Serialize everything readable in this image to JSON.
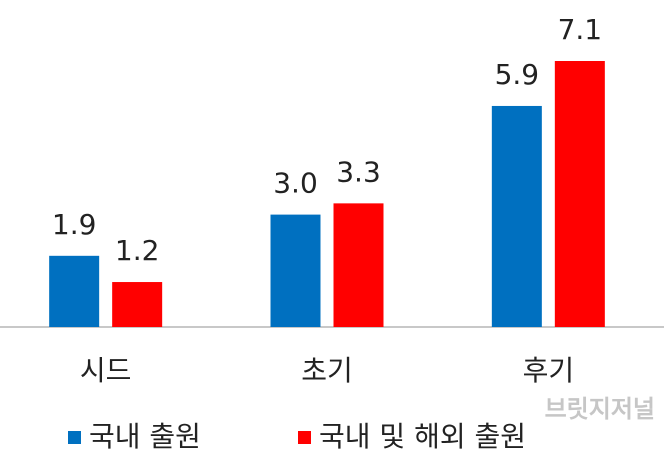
{
  "chart_data": {
    "type": "bar",
    "categories": [
      "시드",
      "초기",
      "후기"
    ],
    "series": [
      {
        "name": "국내 출원",
        "color": "#0070c0",
        "values": [
          1.9,
          3.0,
          5.9
        ],
        "value_labels": [
          "1.9",
          "3.0",
          "5.9"
        ]
      },
      {
        "name": "국내 및 해외 출원",
        "color": "#ff0000",
        "values": [
          1.2,
          3.3,
          7.1
        ],
        "value_labels": [
          "1.2",
          "3.3",
          "7.1"
        ]
      }
    ],
    "legend": "bottom",
    "watermark": "브릿지저널"
  }
}
